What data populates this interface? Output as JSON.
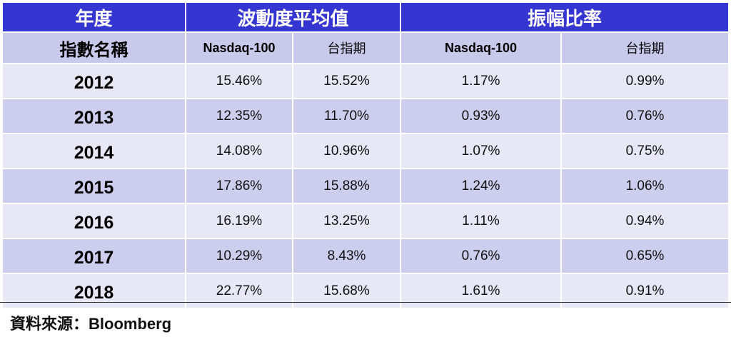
{
  "table": {
    "header_top": {
      "year": "年度",
      "volatility": "波動度平均值",
      "amplitude": "振幅比率"
    },
    "header_sub": {
      "label": "指數名稱",
      "vol_nasdaq": "Nasdaq-100",
      "vol_taiex": "台指期",
      "amp_nasdaq": "Nasdaq-100",
      "amp_taiex": "台指期"
    },
    "rows": [
      {
        "year": "2012",
        "vol_nasdaq": "15.46%",
        "vol_taiex": "15.52%",
        "amp_nasdaq": "1.17%",
        "amp_taiex": "0.99%"
      },
      {
        "year": "2013",
        "vol_nasdaq": "12.35%",
        "vol_taiex": "11.70%",
        "amp_nasdaq": "0.93%",
        "amp_taiex": "0.76%"
      },
      {
        "year": "2014",
        "vol_nasdaq": "14.08%",
        "vol_taiex": "10.96%",
        "amp_nasdaq": "1.07%",
        "amp_taiex": "0.75%"
      },
      {
        "year": "2015",
        "vol_nasdaq": "17.86%",
        "vol_taiex": "15.88%",
        "amp_nasdaq": "1.24%",
        "amp_taiex": "1.06%"
      },
      {
        "year": "2016",
        "vol_nasdaq": "16.19%",
        "vol_taiex": "13.25%",
        "amp_nasdaq": "1.11%",
        "amp_taiex": "0.94%"
      },
      {
        "year": "2017",
        "vol_nasdaq": "10.29%",
        "vol_taiex": "8.43%",
        "amp_nasdaq": "0.76%",
        "amp_taiex": "0.65%"
      },
      {
        "year": "2018",
        "vol_nasdaq": "22.77%",
        "vol_taiex": "15.68%",
        "amp_nasdaq": "1.61%",
        "amp_taiex": "0.91%"
      }
    ],
    "colors": {
      "header_top": "#3535d2",
      "header_sub": "#c9c9ec",
      "row_light": "#e7e7f6",
      "row_dark": "#cdcdee"
    }
  },
  "footer": {
    "source": "資料來源：Bloomberg"
  }
}
